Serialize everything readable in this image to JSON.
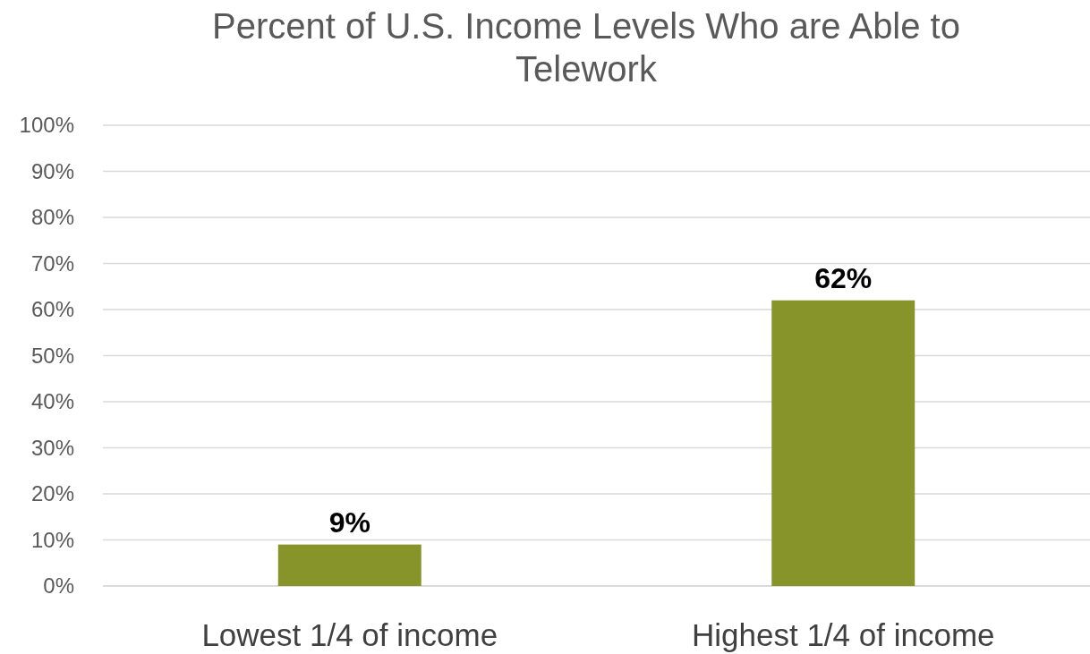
{
  "chart_data": {
    "type": "bar",
    "title": "Percent of U.S. Income Levels Who are Able to Telework",
    "categories": [
      "Lowest 1/4 of income",
      "Highest 1/4 of income"
    ],
    "values": [
      9,
      62
    ],
    "color": "#86942a",
    "ylim": [
      0,
      100
    ],
    "yticks": [
      {
        "value": 0,
        "label": "0%"
      },
      {
        "value": 10,
        "label": "10%"
      },
      {
        "value": 20,
        "label": "20%"
      },
      {
        "value": 30,
        "label": "30%"
      },
      {
        "value": 40,
        "label": "40%"
      },
      {
        "value": 50,
        "label": "50%"
      },
      {
        "value": 60,
        "label": "60%"
      },
      {
        "value": 70,
        "label": "70%"
      },
      {
        "value": 80,
        "label": "80%"
      },
      {
        "value": 90,
        "label": "90%"
      },
      {
        "value": 100,
        "label": "100%"
      }
    ],
    "grid": "y",
    "value_labels": [
      "9%",
      "62%"
    ]
  }
}
